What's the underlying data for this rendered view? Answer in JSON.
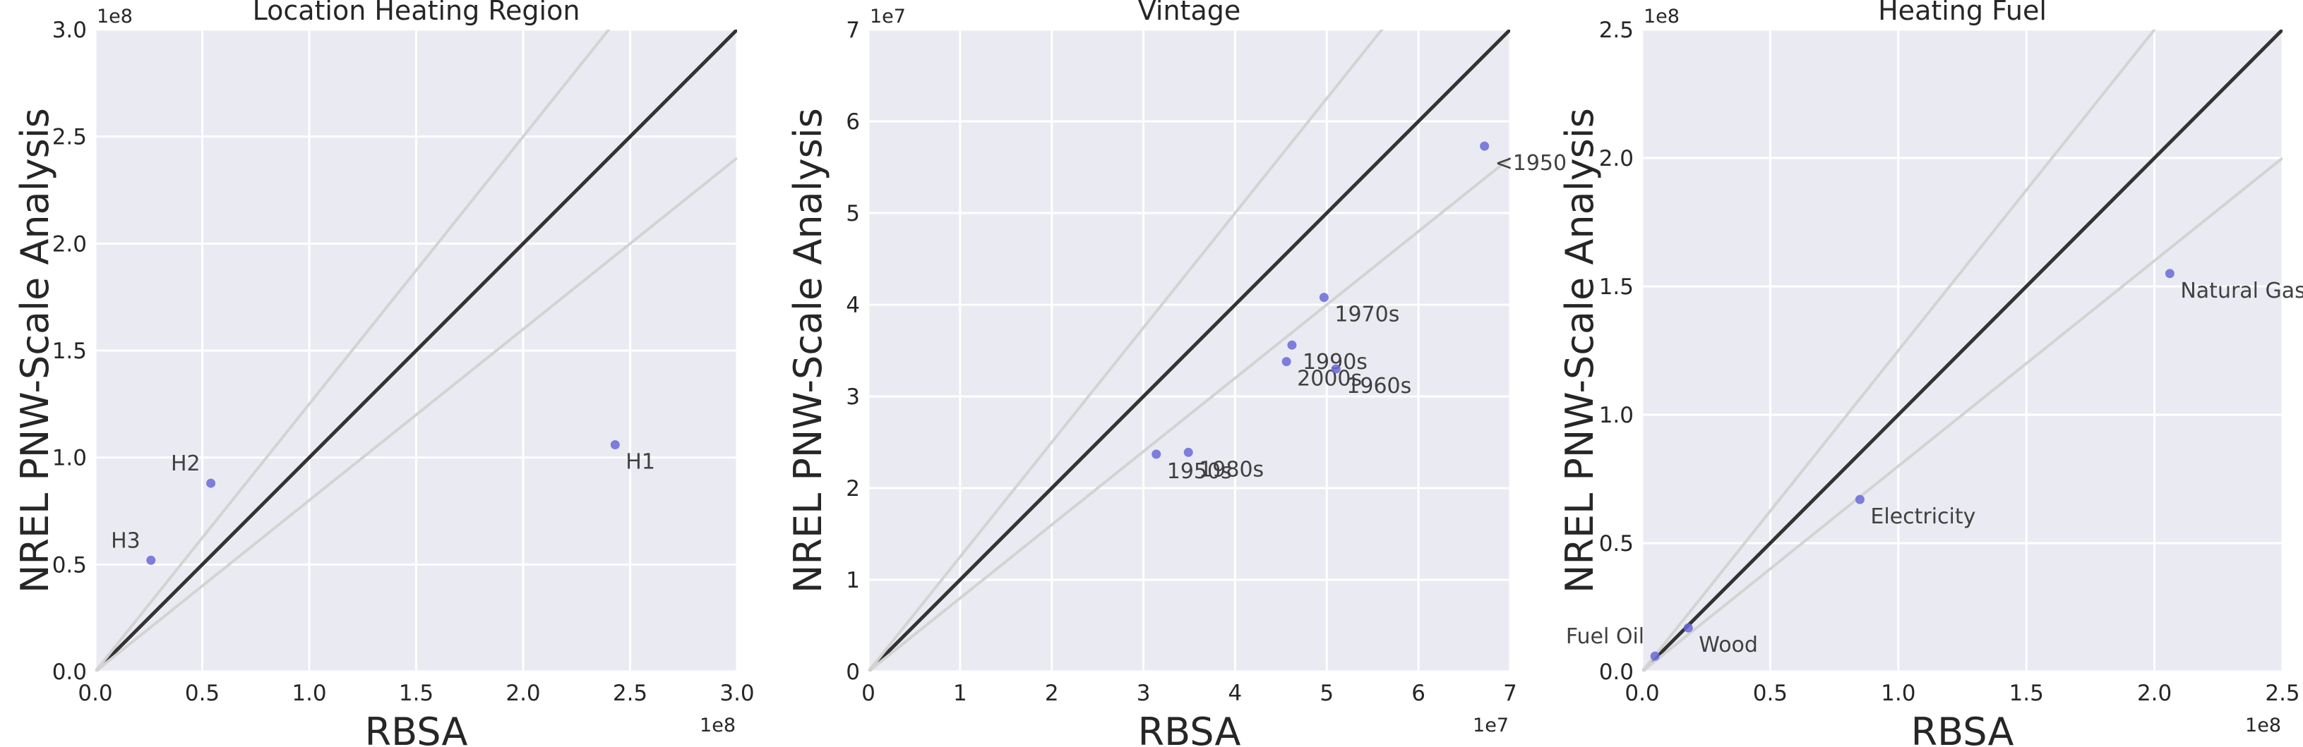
{
  "chart_data": [
    {
      "type": "scatter",
      "title": "Location Heating Region",
      "xlabel": "RBSA",
      "ylabel": "NREL PNW-Scale Analysis",
      "x_scale_label": "1e8",
      "y_scale_label": "1e8",
      "xlim": [
        0,
        3.0
      ],
      "ylim": [
        0,
        3.0
      ],
      "x_ticks": [
        0,
        0.5,
        1.0,
        1.5,
        2.0,
        2.5,
        3.0
      ],
      "x_tick_labels": [
        "0.0",
        "0.5",
        "1.0",
        "1.5",
        "2.0",
        "2.5",
        "3.0"
      ],
      "y_ticks": [
        0,
        0.5,
        1.0,
        1.5,
        2.0,
        2.5,
        3.0
      ],
      "y_tick_labels": [
        "0.0",
        "0.5",
        "1.0",
        "1.5",
        "2.0",
        "2.5",
        "3.0"
      ],
      "reference_line_slopes": [
        1.0,
        1.25,
        0.8
      ],
      "points": [
        {
          "label": "H1",
          "x": 2.43,
          "y": 1.06,
          "label_pos": "below-right"
        },
        {
          "label": "H2",
          "x": 0.54,
          "y": 0.88,
          "label_pos": "above-left"
        },
        {
          "label": "H3",
          "x": 0.26,
          "y": 0.52,
          "label_pos": "above-left"
        }
      ],
      "grid": true,
      "colors": {
        "point": "#6a6ad8",
        "identity_line": "#333333",
        "ratio_lines": "#d3d3d3",
        "background": "#eaeaf2",
        "grid": "#ffffff"
      }
    },
    {
      "type": "scatter",
      "title": "Vintage",
      "xlabel": "RBSA",
      "ylabel": "NREL PNW-Scale Analysis",
      "x_scale_label": "1e7",
      "y_scale_label": "1e7",
      "xlim": [
        0,
        7
      ],
      "ylim": [
        0,
        7
      ],
      "x_ticks": [
        0,
        1,
        2,
        3,
        4,
        5,
        6,
        7
      ],
      "x_tick_labels": [
        "0",
        "1",
        "2",
        "3",
        "4",
        "5",
        "6",
        "7"
      ],
      "y_ticks": [
        0,
        1,
        2,
        3,
        4,
        5,
        6,
        7
      ],
      "y_tick_labels": [
        "0",
        "1",
        "2",
        "3",
        "4",
        "5",
        "6",
        "7"
      ],
      "reference_line_slopes": [
        1.0,
        1.25,
        0.8
      ],
      "points": [
        {
          "label": "<1950",
          "x": 6.72,
          "y": 5.73,
          "label_pos": "below-right"
        },
        {
          "label": "1970s",
          "x": 4.97,
          "y": 4.08,
          "label_pos": "below-right"
        },
        {
          "label": "1990s",
          "x": 4.62,
          "y": 3.56,
          "label_pos": "below-right"
        },
        {
          "label": "2000s",
          "x": 4.56,
          "y": 3.38,
          "label_pos": "below-right"
        },
        {
          "label": "1960s",
          "x": 5.1,
          "y": 3.3,
          "label_pos": "below-right"
        },
        {
          "label": "1950s",
          "x": 3.14,
          "y": 2.37,
          "label_pos": "below-right"
        },
        {
          "label": "1980s",
          "x": 3.49,
          "y": 2.39,
          "label_pos": "below-right"
        }
      ],
      "grid": true,
      "colors": {
        "point": "#6a6ad8",
        "identity_line": "#333333",
        "ratio_lines": "#d3d3d3",
        "background": "#eaeaf2",
        "grid": "#ffffff"
      }
    },
    {
      "type": "scatter",
      "title": "Heating Fuel",
      "xlabel": "RBSA",
      "ylabel": "NREL PNW-Scale Analysis",
      "x_scale_label": "1e8",
      "y_scale_label": "1e8",
      "xlim": [
        0,
        2.5
      ],
      "ylim": [
        0,
        2.5
      ],
      "x_ticks": [
        0,
        0.5,
        1.0,
        1.5,
        2.0,
        2.5
      ],
      "x_tick_labels": [
        "0.0",
        "0.5",
        "1.0",
        "1.5",
        "2.0",
        "2.5"
      ],
      "y_ticks": [
        0,
        0.5,
        1.0,
        1.5,
        2.0,
        2.5
      ],
      "y_tick_labels": [
        "0.0",
        "0.5",
        "1.0",
        "1.5",
        "2.0",
        "2.5"
      ],
      "reference_line_slopes": [
        1.0,
        1.25,
        0.8
      ],
      "points": [
        {
          "label": "Natural Gas",
          "x": 2.06,
          "y": 1.55,
          "label_pos": "below-right"
        },
        {
          "label": "Electricity",
          "x": 0.85,
          "y": 0.67,
          "label_pos": "below-right"
        },
        {
          "label": "Wood",
          "x": 0.18,
          "y": 0.17,
          "label_pos": "below-right"
        },
        {
          "label": "Fuel Oil",
          "x": 0.05,
          "y": 0.06,
          "label_pos": "above-left"
        }
      ],
      "grid": true,
      "colors": {
        "point": "#6a6ad8",
        "identity_line": "#333333",
        "ratio_lines": "#d3d3d3",
        "background": "#eaeaf2",
        "grid": "#ffffff"
      }
    }
  ]
}
